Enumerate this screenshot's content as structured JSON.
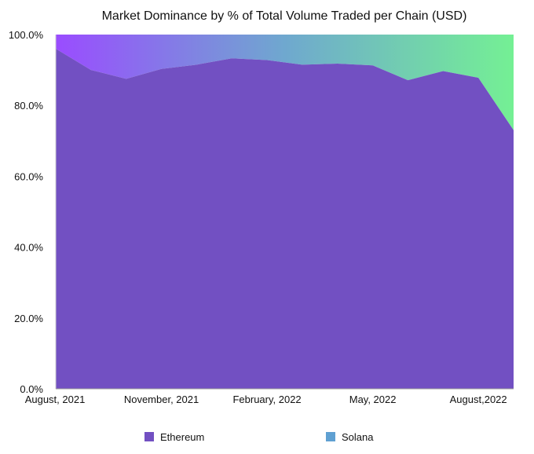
{
  "chart_data": {
    "type": "area",
    "stacked": true,
    "normalized": true,
    "title": "Market Dominance by % of Total Volume Traded per Chain (USD)",
    "xlabel": "",
    "ylabel": "",
    "x": [
      "Aug 2021",
      "Sep 2021",
      "Oct 2021",
      "Nov 2021",
      "Dec 2021",
      "Jan 2022",
      "Feb 2022",
      "Mar 2022",
      "Apr 2022",
      "May 2022",
      "Jun 2022",
      "Jul 2022",
      "Aug 2022",
      "Sep 2022"
    ],
    "x_tick_labels": [
      "August, 2021",
      "November, 2021",
      "February, 2022",
      "May, 2022",
      "August,2022"
    ],
    "y_tick_labels": [
      "0.0%",
      "20.0%",
      "40.0%",
      "60.0%",
      "80.0%",
      "100.0%"
    ],
    "ylim": [
      0,
      100
    ],
    "grid": false,
    "legend_position": "bottom",
    "series": [
      {
        "name": "Ethereum",
        "color": "#7250c2",
        "values": [
          96.0,
          90.0,
          87.5,
          90.3,
          91.5,
          93.3,
          92.8,
          91.5,
          91.8,
          91.3,
          87.1,
          89.7,
          87.8,
          73.0
        ]
      },
      {
        "name": "Solana",
        "color_gradient": [
          "#9a4cff",
          "#6fa8cf",
          "#74f094"
        ],
        "values": [
          4.0,
          10.0,
          12.5,
          9.7,
          8.5,
          6.7,
          7.2,
          8.5,
          8.2,
          8.7,
          12.9,
          10.3,
          12.2,
          27.0
        ]
      }
    ]
  }
}
